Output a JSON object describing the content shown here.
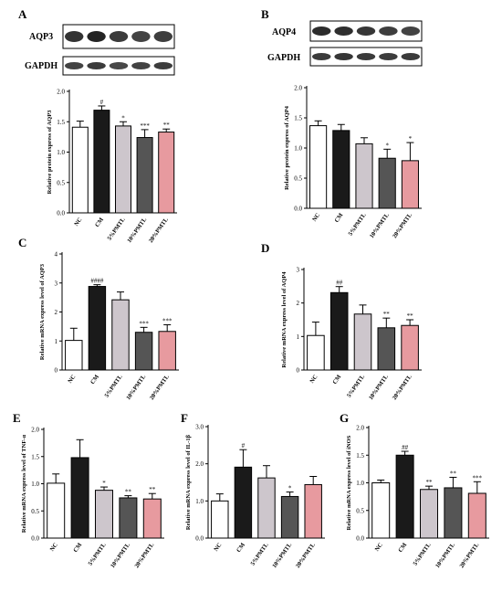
{
  "panel_letters": [
    "A",
    "B",
    "C",
    "D",
    "E",
    "F",
    "G"
  ],
  "blots": {
    "A": {
      "label_top": "AQP3",
      "label_bottom": "GAPDH"
    },
    "B": {
      "label_top": "AQP4",
      "label_bottom": "GAPDH"
    }
  },
  "colors": {
    "NC": "#ffffff",
    "CM": "#1a1a1a",
    "5%PMTL": "#cdc6cc",
    "10%PMTL": "#555555",
    "20%PMTL": "#e79a9f"
  },
  "categories": [
    "NC",
    "CM",
    "5%PMTL",
    "10%PMTL",
    "20%PMTL"
  ],
  "chart_data": [
    {
      "panel": "A",
      "type": "bar",
      "ylabel": "Relative protein express of AQP3",
      "ylim": [
        0.0,
        2.0
      ],
      "yticks": [
        "0.0",
        "0.5",
        "1.0",
        "1.5",
        "2.0"
      ],
      "categories": [
        "NC",
        "CM",
        "5%PMTL",
        "10%PMTL",
        "20%PMTL"
      ],
      "values": [
        1.41,
        1.69,
        1.43,
        1.24,
        1.33
      ],
      "errors": [
        0.1,
        0.07,
        0.07,
        0.13,
        0.05
      ],
      "annotations": [
        "",
        "#",
        "*",
        "***",
        "**"
      ]
    },
    {
      "panel": "B",
      "type": "bar",
      "ylabel": "Relative protein express of AQP4",
      "ylim": [
        0.0,
        2.0
      ],
      "yticks": [
        "0.0",
        "0.5",
        "1.0",
        "1.5",
        "2.0"
      ],
      "categories": [
        "NC",
        "CM",
        "5%PMTL",
        "10%PMTL",
        "20%PMTL"
      ],
      "values": [
        1.37,
        1.29,
        1.07,
        0.83,
        0.79
      ],
      "errors": [
        0.08,
        0.1,
        0.1,
        0.15,
        0.3
      ],
      "annotations": [
        "",
        "",
        "",
        "*",
        "*"
      ]
    },
    {
      "panel": "C",
      "type": "bar",
      "ylabel": "Relative mRNA express level of AQP3",
      "ylim": [
        0,
        4
      ],
      "yticks": [
        "0",
        "1",
        "2",
        "3",
        "4"
      ],
      "categories": [
        "NC",
        "CM",
        "5%PMTL",
        "10%PMTL",
        "20%PMTL"
      ],
      "values": [
        1.02,
        2.88,
        2.42,
        1.3,
        1.33
      ],
      "errors": [
        0.42,
        0.06,
        0.27,
        0.17,
        0.23
      ],
      "annotations": [
        "",
        "####",
        "",
        "***",
        "***"
      ]
    },
    {
      "panel": "D",
      "type": "bar",
      "ylabel": "Relative mRNA express level of AQP4",
      "ylim": [
        0,
        3
      ],
      "yticks": [
        "0",
        "1",
        "2",
        "3"
      ],
      "categories": [
        "NC",
        "CM",
        "5%PMTL",
        "10%PMTL",
        "20%PMTL"
      ],
      "values": [
        1.03,
        2.31,
        1.67,
        1.26,
        1.33
      ],
      "errors": [
        0.4,
        0.18,
        0.27,
        0.29,
        0.17
      ],
      "annotations": [
        "",
        "##",
        "",
        "**",
        "**"
      ]
    },
    {
      "panel": "E",
      "type": "bar",
      "ylabel": "Relative mRNA express level of TNF-α",
      "ylim": [
        0.0,
        2.0
      ],
      "yticks": [
        "0.0",
        "0.5",
        "1.0",
        "1.5",
        "2.0"
      ],
      "categories": [
        "NC",
        "CM",
        "5%PMTL",
        "10%PMTL",
        "20%PMTL"
      ],
      "values": [
        1.01,
        1.48,
        0.88,
        0.74,
        0.72
      ],
      "errors": [
        0.17,
        0.33,
        0.06,
        0.04,
        0.1
      ],
      "annotations": [
        "",
        "",
        "*",
        "**",
        "**"
      ]
    },
    {
      "panel": "F",
      "type": "bar",
      "ylabel": "Relative mRNA express level of IL-1β",
      "ylim": [
        0.0,
        3.0
      ],
      "yticks": [
        "0.0",
        "1.0",
        "2.0",
        "3.0"
      ],
      "categories": [
        "NC",
        "CM",
        "5%PMTL",
        "10%PMTL",
        "20%PMTL"
      ],
      "values": [
        1.0,
        1.91,
        1.62,
        1.12,
        1.44
      ],
      "errors": [
        0.19,
        0.47,
        0.33,
        0.12,
        0.22
      ],
      "annotations": [
        "",
        "#",
        "",
        "*",
        ""
      ]
    },
    {
      "panel": "G",
      "type": "bar",
      "ylabel": "Relative mRNA express level of iNOS",
      "ylim": [
        0.0,
        2.0
      ],
      "yticks": [
        "0.0",
        "0.5",
        "1.0",
        "1.5",
        "2.0"
      ],
      "categories": [
        "NC",
        "CM",
        "5%PMTL",
        "10%PMTL",
        "20%PMTL"
      ],
      "values": [
        1.0,
        1.5,
        0.88,
        0.91,
        0.81
      ],
      "errors": [
        0.05,
        0.07,
        0.06,
        0.19,
        0.21
      ],
      "annotations": [
        "",
        "##",
        "**",
        "**",
        "***"
      ]
    }
  ]
}
